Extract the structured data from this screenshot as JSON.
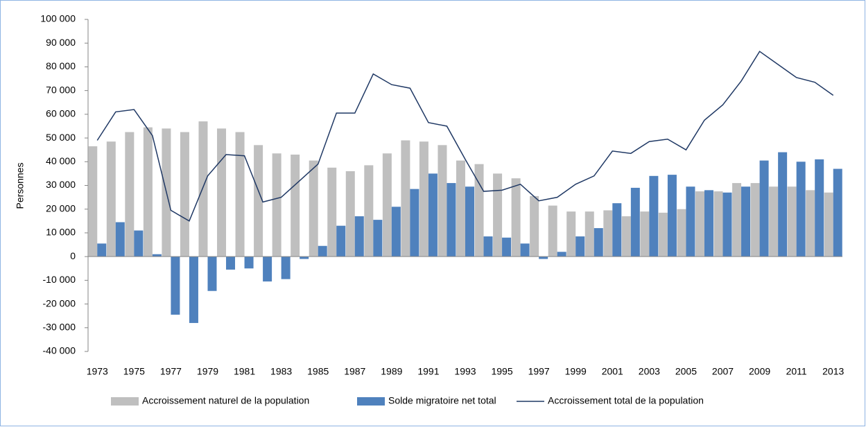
{
  "chart_data": {
    "type": "bar",
    "y_label": "Personnes",
    "categories": [
      "1973",
      null,
      "1975",
      null,
      "1977",
      null,
      "1979",
      null,
      "1981",
      null,
      "1983",
      null,
      "1985",
      null,
      "1987",
      null,
      "1989",
      null,
      "1991",
      null,
      "1993",
      null,
      "1995",
      null,
      "1997",
      null,
      "1999",
      null,
      "2001",
      null,
      "2003",
      null,
      "2005",
      null,
      "2007",
      null,
      "2009",
      null,
      "2011",
      null,
      "2013"
    ],
    "series": [
      {
        "name": "Accroissement naturel de la population",
        "type": "bar",
        "color": "#bfbfbf",
        "values": [
          46500,
          48500,
          52500,
          54500,
          54000,
          52500,
          57000,
          54000,
          52500,
          47000,
          43500,
          43000,
          40500,
          37500,
          36000,
          38500,
          43500,
          49000,
          48500,
          47000,
          40500,
          39000,
          35000,
          33000,
          25500,
          21500,
          19000,
          19000,
          19500,
          17000,
          19000,
          18500,
          20000,
          27500,
          27500,
          31000,
          31000,
          29500,
          29500,
          28000,
          27000
        ]
      },
      {
        "name": "Solde migratoire net total",
        "type": "bar",
        "color": "#4f81bd",
        "values": [
          5500,
          14500,
          11000,
          1000,
          -24500,
          -28000,
          -14500,
          -5500,
          -5000,
          -10500,
          -9500,
          -1000,
          4500,
          13000,
          17000,
          15500,
          21000,
          28500,
          35000,
          31000,
          29500,
          8500,
          8000,
          5500,
          -1000,
          2000,
          8500,
          12000,
          22500,
          29000,
          34000,
          34500,
          29500,
          28000,
          27000,
          29500,
          40500,
          44000,
          40000,
          41000,
          37000
        ]
      },
      {
        "name": "Accroissement total de la population",
        "type": "line",
        "color": "#1f3864",
        "values": [
          49000,
          61000,
          62000,
          51000,
          19500,
          15000,
          34000,
          43000,
          42500,
          23000,
          25000,
          32000,
          39000,
          60500,
          60500,
          77000,
          72500,
          71000,
          56500,
          55000,
          41000,
          27500,
          28000,
          30500,
          23500,
          25000,
          30500,
          34000,
          44500,
          43500,
          48500,
          49500,
          45000,
          57500,
          64000,
          74000,
          86500,
          81000,
          75500,
          73500,
          68000
        ]
      }
    ],
    "ylim": [
      -40000,
      100000
    ],
    "yticks": [
      {
        "value": -40000,
        "label": "-40 000"
      },
      {
        "value": -30000,
        "label": "-30 000"
      },
      {
        "value": -20000,
        "label": "-20 000"
      },
      {
        "value": -10000,
        "label": "-10 000"
      },
      0,
      {
        "value": 10000,
        "label": "10 000"
      },
      {
        "value": 20000,
        "label": "20 000"
      },
      {
        "value": 30000,
        "label": "30 000"
      },
      {
        "value": 40000,
        "label": "40 000"
      },
      {
        "value": 50000,
        "label": "50 000"
      },
      {
        "value": 60000,
        "label": "60 000"
      },
      {
        "value": 70000,
        "label": "70 000"
      },
      {
        "value": 80000,
        "label": "80 000"
      },
      {
        "value": 90000,
        "label": "90 000"
      },
      {
        "value": 100000,
        "label": "100 000"
      }
    ],
    "legend": "bottom"
  }
}
